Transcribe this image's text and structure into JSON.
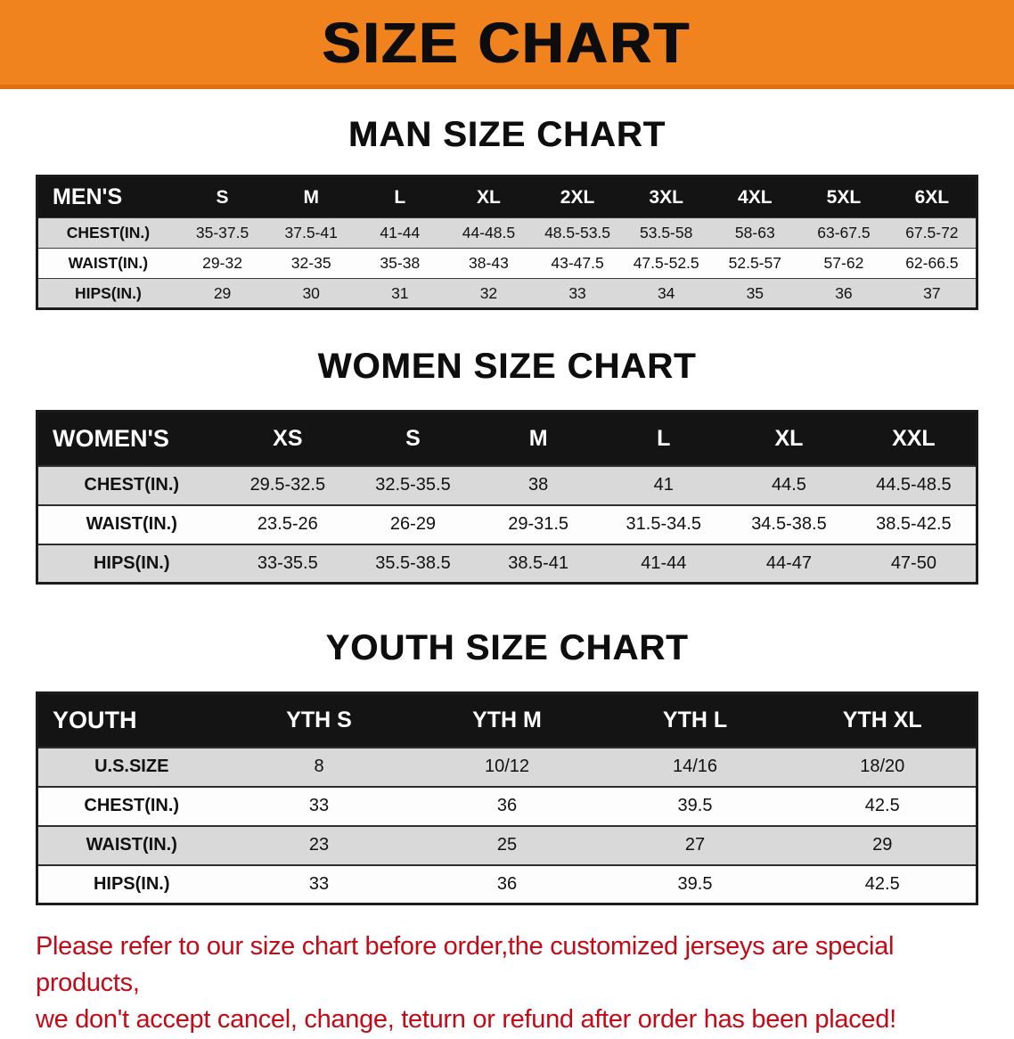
{
  "banner": {
    "title": "SIZE CHART",
    "background": "#f1831f"
  },
  "chart_data": [
    {
      "type": "table",
      "title": "MAN SIZE CHART",
      "header": [
        "MEN'S",
        "S",
        "M",
        "L",
        "XL",
        "2XL",
        "3XL",
        "4XL",
        "5XL",
        "6XL"
      ],
      "rows": [
        {
          "label": "CHEST(IN.)",
          "values": [
            "35-37.5",
            "37.5-41",
            "41-44",
            "44-48.5",
            "48.5-53.5",
            "53.5-58",
            "58-63",
            "63-67.5",
            "67.5-72"
          ]
        },
        {
          "label": "WAIST(IN.)",
          "values": [
            "29-32",
            "32-35",
            "35-38",
            "38-43",
            "43-47.5",
            "47.5-52.5",
            "52.5-57",
            "57-62",
            "62-66.5"
          ]
        },
        {
          "label": "HIPS(IN.)",
          "values": [
            "29",
            "30",
            "31",
            "32",
            "33",
            "34",
            "35",
            "36",
            "37"
          ]
        }
      ]
    },
    {
      "type": "table",
      "title": "WOMEN SIZE CHART",
      "header": [
        "WOMEN'S",
        "XS",
        "S",
        "M",
        "L",
        "XL",
        "XXL"
      ],
      "rows": [
        {
          "label": "CHEST(IN.)",
          "values": [
            "29.5-32.5",
            "32.5-35.5",
            "38",
            "41",
            "44.5",
            "44.5-48.5"
          ]
        },
        {
          "label": "WAIST(IN.)",
          "values": [
            "23.5-26",
            "26-29",
            "29-31.5",
            "31.5-34.5",
            "34.5-38.5",
            "38.5-42.5"
          ]
        },
        {
          "label": "HIPS(IN.)",
          "values": [
            "33-35.5",
            "35.5-38.5",
            "38.5-41",
            "41-44",
            "44-47",
            "47-50"
          ]
        }
      ]
    },
    {
      "type": "table",
      "title": "YOUTH SIZE CHART",
      "header": [
        "YOUTH",
        "YTH S",
        "YTH M",
        "YTH L",
        "YTH XL"
      ],
      "rows": [
        {
          "label": "U.S.SIZE",
          "values": [
            "8",
            "10/12",
            "14/16",
            "18/20"
          ]
        },
        {
          "label": "CHEST(IN.)",
          "values": [
            "33",
            "36",
            "39.5",
            "42.5"
          ]
        },
        {
          "label": "WAIST(IN.)",
          "values": [
            "23",
            "25",
            "27",
            "29"
          ]
        },
        {
          "label": "HIPS(IN.)",
          "values": [
            "33",
            "36",
            "39.5",
            "42.5"
          ]
        }
      ]
    }
  ],
  "footer": {
    "line1": "Please refer to our size chart before order,the customized jerseys are special products,",
    "line2": "we don't accept cancel, change, teturn or refund after order has been placed!",
    "color": "#c40a17"
  }
}
